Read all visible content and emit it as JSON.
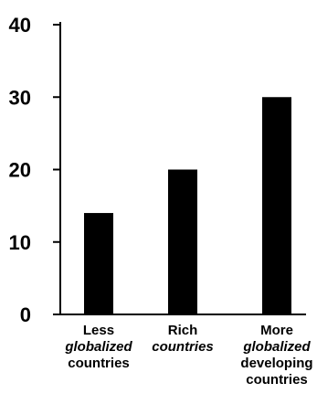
{
  "chart_data": {
    "type": "bar",
    "title": "",
    "xlabel": "",
    "ylabel": "",
    "ylim": [
      0,
      40
    ],
    "yticks": [
      0,
      10,
      20,
      30,
      40
    ],
    "grid": false,
    "categories": [
      "Less globalized countries",
      "Rich countries",
      "More globalized developing countries"
    ],
    "category_lines": [
      [
        {
          "t": "Less",
          "italic": false
        },
        {
          "t": "globalized",
          "italic": true
        },
        {
          "t": "countries",
          "italic": false
        }
      ],
      [
        {
          "t": "Rich",
          "italic": false
        },
        {
          "t": "countries",
          "italic": true
        }
      ],
      [
        {
          "t": "More",
          "italic": false
        },
        {
          "t": "globalized",
          "italic": true
        },
        {
          "t": "developing",
          "italic": false
        },
        {
          "t": "countries",
          "italic": false
        }
      ]
    ],
    "values": [
      14,
      20,
      30
    ],
    "bar_color": "#000000"
  }
}
